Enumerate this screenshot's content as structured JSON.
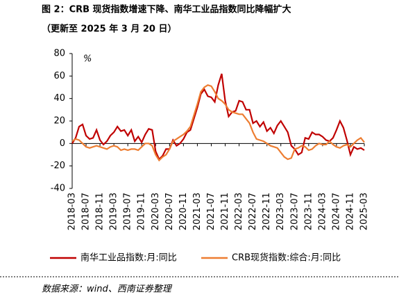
{
  "chart_data": {
    "type": "line",
    "title": "图 2：CRB 现货指数增速下降、南华工业品指数同比降幅扩大",
    "subtitle": "（更新至 2025 年 3 月 20 日）",
    "source": "数据来源：wind、西南证券整理",
    "y_unit": "%",
    "categories": [
      "2018-03",
      null,
      null,
      null,
      "2018-07",
      null,
      null,
      null,
      "2018-11",
      null,
      null,
      null,
      "2019-03",
      null,
      null,
      null,
      "2019-07",
      null,
      null,
      null,
      "2019-11",
      null,
      null,
      null,
      "2020-03",
      null,
      null,
      null,
      "2020-07",
      null,
      null,
      null,
      "2020-11",
      null,
      null,
      null,
      "2021-03",
      null,
      null,
      null,
      "2021-07",
      null,
      null,
      null,
      "2021-11",
      null,
      null,
      null,
      "2022-03",
      null,
      null,
      null,
      "2022-07",
      null,
      null,
      null,
      "2022-11",
      null,
      null,
      null,
      "2023-03",
      null,
      null,
      null,
      "2023-07",
      null,
      null,
      null,
      "2023-11",
      null,
      null,
      null,
      "2024-03",
      null,
      null,
      null,
      "2024-07",
      null,
      null,
      null,
      "2024-11",
      null,
      null,
      null,
      "2025-03"
    ],
    "series": [
      {
        "name": "南华工业品指数:月:同比",
        "color": "#c00000",
        "values": [
          0,
          5,
          15,
          17,
          7,
          4,
          5,
          12,
          3,
          -1,
          2,
          7,
          10,
          15,
          11,
          12,
          7,
          12,
          2,
          6,
          1,
          8,
          13,
          12,
          -7,
          -14,
          -11,
          -5,
          -5,
          3,
          -2,
          0,
          4,
          10,
          12,
          22,
          32,
          44,
          48,
          42,
          41,
          37,
          52,
          62,
          38,
          24,
          28,
          29,
          38,
          37,
          30,
          30,
          18,
          20,
          15,
          19,
          11,
          14,
          9,
          16,
          20,
          15,
          10,
          -2,
          -5,
          -10,
          -8,
          5,
          4,
          10,
          8,
          8,
          6,
          3,
          2,
          5,
          12,
          20,
          14,
          3,
          -10,
          -3,
          -5,
          -4,
          -6
        ]
      },
      {
        "name": "CRB现货指数:综合:月:同比",
        "color": "#ed7d31",
        "values": [
          2,
          4,
          3,
          0,
          -3,
          -4,
          -3,
          -2,
          -3,
          -4,
          -5,
          -3,
          -2,
          -3,
          -6,
          -5,
          -6,
          -5,
          -5,
          -6,
          -3,
          0,
          0,
          -2,
          -10,
          -15,
          -12,
          -10,
          -5,
          2,
          4,
          6,
          8,
          11,
          15,
          25,
          35,
          46,
          50,
          52,
          51,
          46,
          40,
          38,
          35,
          30,
          28,
          27,
          26,
          26,
          22,
          18,
          10,
          4,
          3,
          2,
          0,
          -2,
          -3,
          -4,
          -8,
          -12,
          -14,
          -13,
          -5,
          -4,
          -2,
          -3,
          -6,
          -5,
          -2,
          0,
          -1,
          -1,
          2,
          -1,
          -3,
          -4,
          -2,
          -1,
          -3,
          0,
          3,
          5,
          1
        ]
      }
    ],
    "ylim": [
      -40,
      80
    ],
    "yticks": [
      -40,
      -20,
      0,
      20,
      40,
      60,
      80
    ],
    "grid": false
  }
}
